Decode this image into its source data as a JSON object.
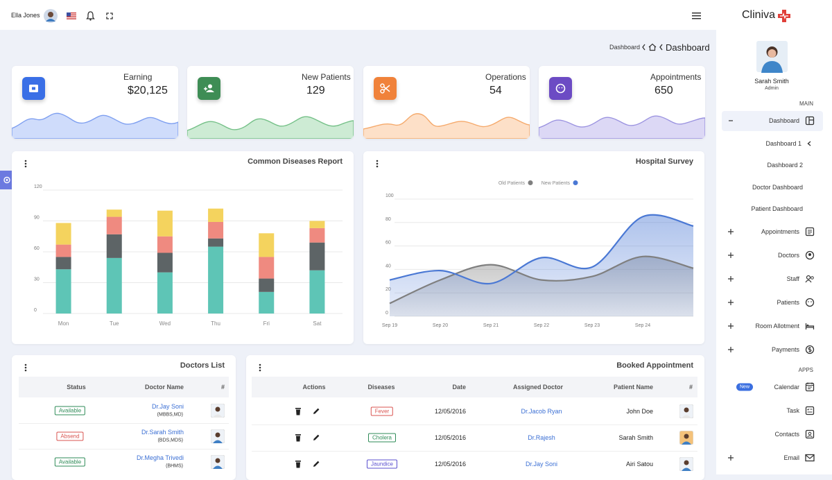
{
  "header": {
    "user": "Ella Jones"
  },
  "breadcrumb": {
    "parent": "Dashboard",
    "current": "Dashboard"
  },
  "stats": [
    {
      "title": "Earning",
      "value": "$20,125"
    },
    {
      "title": "New Patients",
      "value": "129"
    },
    {
      "title": "Operations",
      "value": "54"
    },
    {
      "title": "Appointments",
      "value": "650"
    }
  ],
  "diseases_chart": {
    "type": "bar",
    "stacked": true,
    "title": "Common Diseases Report",
    "categories": [
      "Mon",
      "Tue",
      "Wed",
      "Thu",
      "Fri",
      "Sat"
    ],
    "series": [
      {
        "color": "#5ec5b6",
        "values": [
          43,
          54,
          40,
          65,
          21,
          42
        ]
      },
      {
        "color": "#5d6466",
        "values": [
          12,
          23,
          19,
          8,
          13,
          27
        ]
      },
      {
        "color": "#ef8a80",
        "values": [
          12,
          17,
          16,
          16,
          21,
          14
        ]
      },
      {
        "color": "#f4d35e",
        "values": [
          21,
          7,
          25,
          13,
          23,
          7
        ]
      }
    ],
    "ylim": [
      0,
      120
    ],
    "yticks": [
      0,
      30,
      60,
      90,
      120
    ],
    "grid": true
  },
  "survey_chart": {
    "type": "area",
    "title": "Hospital Survey",
    "categories": [
      "Sep 19",
      "Sep 20",
      "Sep 21",
      "Sep 22",
      "Sep 23",
      "Sep 24",
      null
    ],
    "series": [
      {
        "name": "Old Patients",
        "color": "#7f7f7f",
        "values": [
          11,
          31,
          44,
          31,
          34,
          51,
          41
        ]
      },
      {
        "name": "New Patients",
        "color": "#4a78d4",
        "values": [
          31,
          39,
          28,
          50,
          42,
          85,
          77
        ]
      }
    ],
    "ylim": [
      0,
      100
    ],
    "yticks": [
      0,
      20,
      40,
      60,
      80,
      100
    ],
    "grid": true,
    "legend": "top"
  },
  "doctors_list": {
    "title": "Doctors List",
    "columns": [
      "Status",
      "Doctor Name",
      "#"
    ],
    "rows": [
      {
        "status": "Available",
        "name": "Dr.Jay Soni",
        "degree": "(MBBS,MD)"
      },
      {
        "status": "Absend",
        "name": "Dr.Sarah Smith",
        "degree": "(BDS,MDS)"
      },
      {
        "status": "Available",
        "name": "Dr.Megha Trivedi",
        "degree": "(BHMS)"
      }
    ]
  },
  "appointments": {
    "title": "Booked Appointment",
    "columns": [
      "Actions",
      "Diseases",
      "Date",
      "Assigned Doctor",
      "Patient Name",
      "#"
    ],
    "rows": [
      {
        "disease": "Fever",
        "date": "12/05/2016",
        "doctor": "Dr.Jacob Ryan",
        "patient": "John Doe"
      },
      {
        "disease": "Cholera",
        "date": "12/05/2016",
        "doctor": "Dr.Rajesh",
        "patient": "Sarah Smith"
      },
      {
        "disease": "Jaundice",
        "date": "12/05/2016",
        "doctor": "Dr.Jay Soni",
        "patient": "Airi Satou"
      }
    ]
  },
  "sidebar": {
    "brand": "Cliniva",
    "profile": {
      "name": "Sarah Smith",
      "role": "Admin"
    },
    "main_label": "MAIN",
    "menu": [
      "Dashboard",
      "Appointments",
      "Doctors",
      "Staff",
      "Patients",
      "Room Allotment",
      "Payments"
    ],
    "submenu": [
      "Dashboard 1",
      "Dashboard 2",
      "Doctor Dashboard",
      "Patient Dashboard"
    ],
    "apps_label": "APPS",
    "apps": [
      "Calendar",
      "Task",
      "Contacts",
      "Email"
    ],
    "badge": "New"
  }
}
